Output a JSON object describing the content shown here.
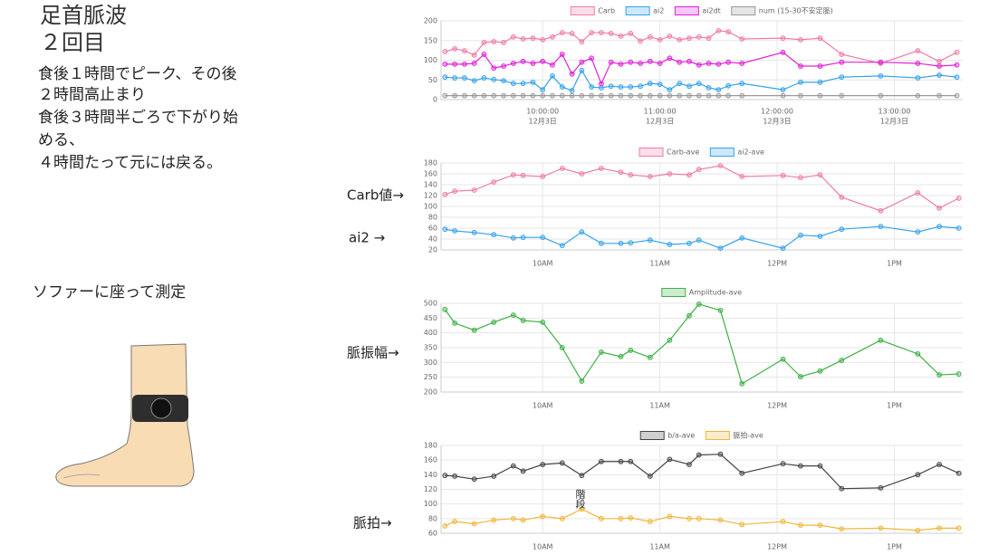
{
  "slide": {
    "title": "足首脈波",
    "subtitle": "２回目",
    "notes": [
      "食後１時間でピーク、その後",
      "２時間高止まり",
      "食後３時間半ごろで下がり始",
      "める、",
      "４時間たって元には戻る。"
    ],
    "posture": "ソファーに座って測定",
    "labels": [
      "Carb値→",
      "ai2 →",
      "脈振幅→",
      "脈拍→"
    ]
  },
  "chart_data": [
    {
      "type": "line",
      "x": [
        "09:10",
        "09:15",
        "09:20",
        "09:25",
        "09:30",
        "09:35",
        "09:40",
        "09:45",
        "09:50",
        "09:55",
        "10:00",
        "10:05",
        "10:10",
        "10:15",
        "10:20",
        "10:25",
        "10:30",
        "10:35",
        "10:40",
        "10:45",
        "10:50",
        "10:55",
        "11:00",
        "11:05",
        "11:10",
        "11:15",
        "11:20",
        "11:25",
        "11:30",
        "11:35",
        "11:42",
        "12:03",
        "12:12",
        "12:22",
        "12:33",
        "12:53",
        "13:12",
        "13:23",
        "13:32"
      ],
      "series": [
        {
          "name": "Carb",
          "color": "#f07ca6",
          "values": [
            122,
            129,
            124,
            113,
            145,
            147,
            145,
            159,
            154,
            156,
            152,
            159,
            170,
            168,
            147,
            170,
            170,
            168,
            161,
            168,
            149,
            159,
            152,
            161,
            152,
            156,
            159,
            156,
            175,
            172,
            154,
            156,
            152,
            156,
            115,
            92,
            124,
            97,
            120
          ]
        },
        {
          "name": "ai2",
          "color": "#36a2eb",
          "values": [
            57,
            55,
            55,
            48,
            55,
            51,
            48,
            41,
            41,
            44,
            25,
            60,
            32,
            23,
            74,
            32,
            30,
            34,
            32,
            32,
            34,
            41,
            39,
            25,
            41,
            34,
            41,
            30,
            25,
            35,
            41,
            25,
            44,
            44,
            57,
            60,
            55,
            62,
            57
          ]
        },
        {
          "name": "ai2dt",
          "color": "#e020d8",
          "values": [
            90,
            90,
            90,
            92,
            115,
            80,
            85,
            92,
            97,
            92,
            97,
            88,
            115,
            65,
            95,
            105,
            40,
            95,
            90,
            95,
            92,
            97,
            92,
            105,
            95,
            97,
            88,
            92,
            90,
            95,
            92,
            120,
            85,
            85,
            95,
            95,
            92,
            85,
            88
          ]
        },
        {
          "name": "num (15-30不安定脈)",
          "color": "#999999",
          "values": [
            10,
            10,
            10,
            10,
            10,
            10,
            10,
            10,
            10,
            10,
            10,
            10,
            10,
            10,
            10,
            10,
            10,
            10,
            10,
            10,
            10,
            10,
            10,
            10,
            10,
            10,
            10,
            10,
            10,
            10,
            10,
            10,
            10,
            10,
            10,
            10,
            10,
            10,
            10
          ]
        }
      ],
      "xlim": [
        "09:08",
        "13:35"
      ],
      "xticks": [
        {
          "value": "10:00",
          "label": [
            "10:00:00",
            "12月3日"
          ]
        },
        {
          "value": "11:00",
          "label": [
            "11:00:00",
            "12月3日"
          ]
        },
        {
          "value": "12:00",
          "label": [
            "12:00:00",
            "12月3日"
          ]
        },
        {
          "value": "13:00",
          "label": [
            "13:00:00",
            "12月3日"
          ]
        }
      ],
      "ylim": [
        0,
        200
      ],
      "yticks": [
        0,
        50,
        100,
        150,
        200
      ],
      "grid": true,
      "legend": "top"
    },
    {
      "type": "line",
      "x": [
        "09:10",
        "09:15",
        "09:25",
        "09:35",
        "09:45",
        "09:50",
        "10:00",
        "10:10",
        "10:20",
        "10:30",
        "10:40",
        "10:45",
        "10:55",
        "11:05",
        "11:15",
        "11:20",
        "11:31",
        "11:42",
        "12:03",
        "12:12",
        "12:22",
        "12:33",
        "12:53",
        "13:12",
        "13:23",
        "13:33"
      ],
      "series": [
        {
          "name": "Carb-ave",
          "color": "#f07ca6",
          "values": [
            122,
            128,
            130,
            145,
            158,
            157,
            155,
            170,
            160,
            170,
            163,
            158,
            155,
            160,
            158,
            168,
            175,
            155,
            157,
            153,
            158,
            117,
            92,
            125,
            97,
            115
          ]
        },
        {
          "name": "ai2-ave",
          "color": "#36a2eb",
          "values": [
            58,
            55,
            52,
            48,
            42,
            43,
            43,
            28,
            53,
            32,
            32,
            33,
            38,
            30,
            32,
            38,
            23,
            42,
            23,
            47,
            45,
            58,
            63,
            53,
            63,
            60
          ]
        }
      ],
      "xlim": [
        "09:08",
        "13:35"
      ],
      "xticks": [
        {
          "value": "10:00",
          "label": "10AM"
        },
        {
          "value": "11:00",
          "label": "11AM"
        },
        {
          "value": "12:00",
          "label": "12PM"
        },
        {
          "value": "13:00",
          "label": "1PM"
        }
      ],
      "ylim": [
        20,
        180
      ],
      "yticks": [
        20,
        40,
        60,
        80,
        100,
        120,
        140,
        160,
        180
      ],
      "grid": true,
      "legend": "top"
    },
    {
      "type": "line",
      "x": [
        "09:10",
        "09:15",
        "09:25",
        "09:35",
        "09:45",
        "09:50",
        "10:00",
        "10:10",
        "10:20",
        "10:30",
        "10:40",
        "10:45",
        "10:55",
        "11:05",
        "11:15",
        "11:20",
        "11:31",
        "11:42",
        "12:03",
        "12:12",
        "12:22",
        "12:33",
        "12:53",
        "13:12",
        "13:23",
        "13:33"
      ],
      "series": [
        {
          "name": "Amplitude-ave",
          "color": "#3cb043",
          "values": [
            479,
            433,
            409,
            436,
            460,
            442,
            436,
            350,
            237,
            335,
            320,
            341,
            317,
            375,
            458,
            497,
            476,
            228,
            311,
            252,
            271,
            307,
            375,
            329,
            258,
            261
          ]
        }
      ],
      "xlim": [
        "09:08",
        "13:35"
      ],
      "xticks": [
        {
          "value": "10:00",
          "label": "10AM"
        },
        {
          "value": "11:00",
          "label": "11AM"
        },
        {
          "value": "12:00",
          "label": "12PM"
        },
        {
          "value": "13:00",
          "label": "1PM"
        }
      ],
      "ylim": [
        200,
        500
      ],
      "yticks": [
        200,
        250,
        300,
        350,
        400,
        450,
        500
      ],
      "grid": true,
      "legend": "top"
    },
    {
      "type": "line",
      "x": [
        "09:10",
        "09:15",
        "09:25",
        "09:35",
        "09:45",
        "09:50",
        "10:00",
        "10:10",
        "10:20",
        "10:30",
        "10:40",
        "10:45",
        "10:55",
        "11:05",
        "11:15",
        "11:20",
        "11:31",
        "11:42",
        "12:03",
        "12:12",
        "12:22",
        "12:33",
        "12:53",
        "13:12",
        "13:23",
        "13:33"
      ],
      "series": [
        {
          "name": "b/a-ave",
          "color": "#444444",
          "values": [
            139,
            138,
            134,
            138,
            152,
            145,
            154,
            156,
            139,
            158,
            158,
            158,
            138,
            161,
            154,
            167,
            168,
            142,
            155,
            152,
            152,
            121,
            122,
            140,
            154,
            142
          ]
        },
        {
          "name": "脈拍-ave",
          "color": "#f2b53a",
          "values": [
            70,
            76,
            73,
            78,
            80,
            78,
            83,
            80,
            93,
            80,
            80,
            81,
            76,
            83,
            80,
            80,
            78,
            72,
            76,
            71,
            71,
            66,
            67,
            64,
            67,
            67
          ]
        }
      ],
      "xlim": [
        "09:08",
        "13:35"
      ],
      "xticks": [
        {
          "value": "10:00",
          "label": "10AM"
        },
        {
          "value": "11:00",
          "label": "11AM"
        },
        {
          "value": "12:00",
          "label": "12PM"
        },
        {
          "value": "13:00",
          "label": "1PM"
        }
      ],
      "ylim": [
        60,
        180
      ],
      "yticks": [
        60,
        80,
        100,
        120,
        140,
        160,
        180
      ],
      "grid": true,
      "legend": "top",
      "annotation": "階段"
    }
  ]
}
